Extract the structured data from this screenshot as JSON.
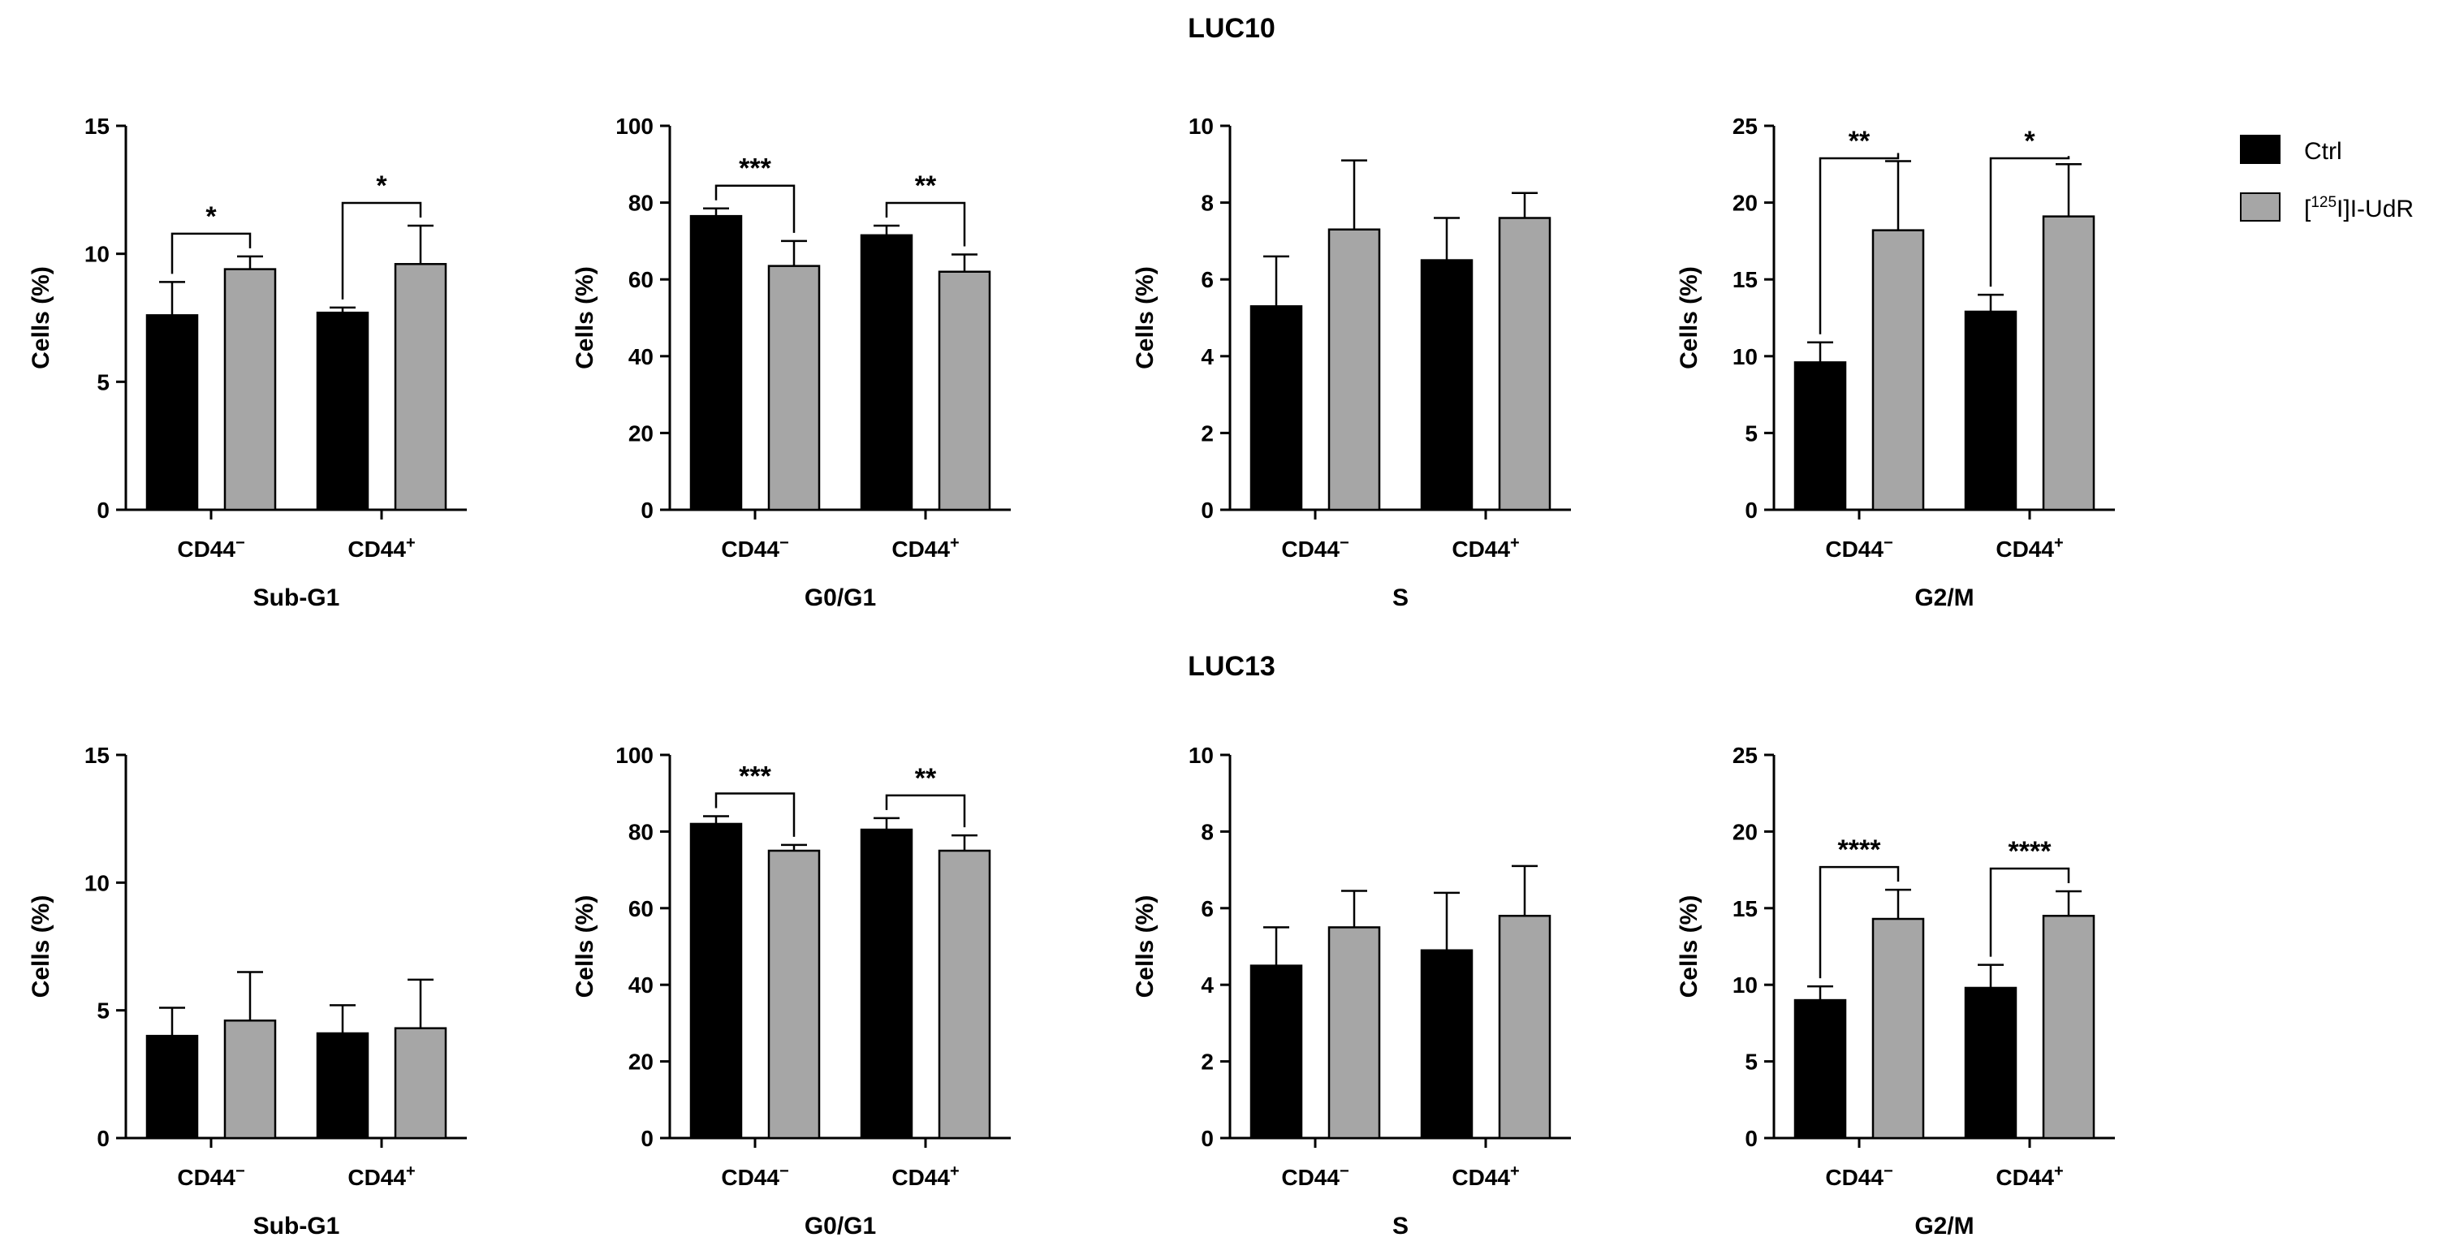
{
  "legend": [
    {
      "id": "ctrl",
      "label": "Ctrl",
      "color": "#000000"
    },
    {
      "id": "iudr",
      "label_sup": "125",
      "label_pre": "[",
      "label_post": "I]I-UdR",
      "color": "#a6a6a6"
    }
  ],
  "chart_data": [
    {
      "row_title": "LUC10",
      "panels": [
        {
          "type": "bar",
          "ylabel": "Cells (%)",
          "xlabel": "Sub-G1",
          "ylim": [
            0,
            15
          ],
          "yticks": [
            0,
            5,
            10,
            15
          ],
          "categories": [
            "CD44−",
            "CD44+"
          ],
          "series": [
            {
              "name": "Ctrl",
              "values": [
                7.6,
                7.7
              ],
              "errors": [
                1.3,
                0.2
              ]
            },
            {
              "name": "[125I]I-UdR",
              "values": [
                9.4,
                9.6
              ],
              "errors": [
                0.5,
                1.5
              ]
            }
          ],
          "significance": [
            "*",
            "*"
          ]
        },
        {
          "type": "bar",
          "ylabel": "Cells (%)",
          "xlabel": "G0/G1",
          "ylim": [
            0,
            100
          ],
          "yticks": [
            0,
            20,
            40,
            60,
            80,
            100
          ],
          "categories": [
            "CD44−",
            "CD44+"
          ],
          "series": [
            {
              "name": "Ctrl",
              "values": [
                76.5,
                71.5
              ],
              "errors": [
                2.0,
                2.5
              ]
            },
            {
              "name": "[125I]I-UdR",
              "values": [
                63.5,
                62.0
              ],
              "errors": [
                6.5,
                4.5
              ]
            }
          ],
          "significance": [
            "***",
            "**"
          ]
        },
        {
          "type": "bar",
          "ylabel": "Cells (%)",
          "xlabel": "S",
          "ylim": [
            0,
            10
          ],
          "yticks": [
            0,
            2,
            4,
            6,
            8,
            10
          ],
          "categories": [
            "CD44−",
            "CD44+"
          ],
          "series": [
            {
              "name": "Ctrl",
              "values": [
                5.3,
                6.5
              ],
              "errors": [
                1.3,
                1.1
              ]
            },
            {
              "name": "[125I]I-UdR",
              "values": [
                7.3,
                7.6
              ],
              "errors": [
                1.8,
                0.65
              ]
            }
          ],
          "significance": [
            "",
            ""
          ]
        },
        {
          "type": "bar",
          "ylabel": "Cells (%)",
          "xlabel": "G2/M",
          "ylim": [
            0,
            25
          ],
          "yticks": [
            0,
            5,
            10,
            15,
            20,
            25
          ],
          "categories": [
            "CD44−",
            "CD44+"
          ],
          "series": [
            {
              "name": "Ctrl",
              "values": [
                9.6,
                12.9
              ],
              "errors": [
                1.3,
                1.1
              ]
            },
            {
              "name": "[125I]I-UdR",
              "values": [
                18.2,
                19.1
              ],
              "errors": [
                4.5,
                3.4
              ]
            }
          ],
          "significance": [
            "**",
            "*"
          ]
        }
      ]
    },
    {
      "row_title": "LUC13",
      "panels": [
        {
          "type": "bar",
          "ylabel": "Cells (%)",
          "xlabel": "Sub-G1",
          "ylim": [
            0,
            15
          ],
          "yticks": [
            0,
            5,
            10,
            15
          ],
          "categories": [
            "CD44−",
            "CD44+"
          ],
          "series": [
            {
              "name": "Ctrl",
              "values": [
                4.0,
                4.1
              ],
              "errors": [
                1.1,
                1.1
              ]
            },
            {
              "name": "[125I]I-UdR",
              "values": [
                4.6,
                4.3
              ],
              "errors": [
                1.9,
                1.9
              ]
            }
          ],
          "significance": [
            "",
            ""
          ]
        },
        {
          "type": "bar",
          "ylabel": "Cells (%)",
          "xlabel": "G0/G1",
          "ylim": [
            0,
            100
          ],
          "yticks": [
            0,
            20,
            40,
            60,
            80,
            100
          ],
          "categories": [
            "CD44−",
            "CD44+"
          ],
          "series": [
            {
              "name": "Ctrl",
              "values": [
                82.0,
                80.5
              ],
              "errors": [
                2.0,
                3.0
              ]
            },
            {
              "name": "[125I]I-UdR",
              "values": [
                75.0,
                75.0
              ],
              "errors": [
                1.5,
                4.0
              ]
            }
          ],
          "significance": [
            "***",
            "**"
          ]
        },
        {
          "type": "bar",
          "ylabel": "Cells (%)",
          "xlabel": "S",
          "ylim": [
            0,
            10
          ],
          "yticks": [
            0,
            2,
            4,
            6,
            8,
            10
          ],
          "categories": [
            "CD44−",
            "CD44+"
          ],
          "series": [
            {
              "name": "Ctrl",
              "values": [
                4.5,
                4.9
              ],
              "errors": [
                1.0,
                1.5
              ]
            },
            {
              "name": "[125I]I-UdR",
              "values": [
                5.5,
                5.8
              ],
              "errors": [
                0.95,
                1.3
              ]
            }
          ],
          "significance": [
            "",
            ""
          ]
        },
        {
          "type": "bar",
          "ylabel": "Cells (%)",
          "xlabel": "G2/M",
          "ylim": [
            0,
            25
          ],
          "yticks": [
            0,
            5,
            10,
            15,
            20,
            25
          ],
          "categories": [
            "CD44−",
            "CD44+"
          ],
          "series": [
            {
              "name": "Ctrl",
              "values": [
                9.0,
                9.8
              ],
              "errors": [
                0.9,
                1.5
              ]
            },
            {
              "name": "[125I]I-UdR",
              "values": [
                14.3,
                14.5
              ],
              "errors": [
                1.9,
                1.6
              ]
            }
          ],
          "significance": [
            "****",
            "****"
          ]
        }
      ]
    }
  ]
}
